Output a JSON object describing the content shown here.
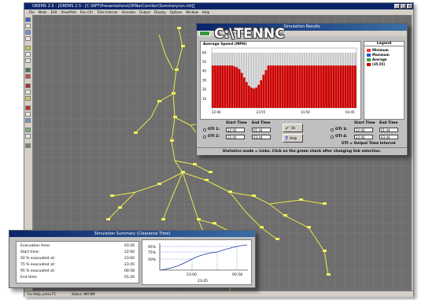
{
  "main_window": {
    "title": "OREMS 2.5 - [OREMS 2.5 - [C:\\NPT\\Presentations\\ORNarCorridor\\Summaryrun.ntt]]",
    "menu": [
      "File",
      "Mode",
      "Edit",
      "View/Path",
      "Run Ctrl",
      "Time Interval",
      "Simulate",
      "Output",
      "Display",
      "Options",
      "Window",
      "Help"
    ],
    "status": [
      "For Help, press F1",
      "Status: NM   NM"
    ]
  },
  "results_window": {
    "title": "Simulation Results",
    "toolbar": [
      "Link",
      "Color Results",
      "Display",
      "Options"
    ],
    "overlay_text": "C:\\TENNC",
    "chart_data": {
      "type": "bar",
      "title": "Average Speed (MPH)",
      "ylim": [
        0,
        65
      ],
      "y_ticks": [
        "60",
        "50",
        "40",
        "30",
        "20",
        "10"
      ],
      "x_ticks": [
        "22:00",
        "23:55",
        "01:50",
        "03:45"
      ],
      "series": [
        {
          "name": "Minimum",
          "color": "#ff3333"
        },
        {
          "name": "Maximum",
          "color": "#2255cc"
        },
        {
          "name": "Average",
          "color": "#33aa33"
        },
        {
          "name": "(35,55)",
          "color": "#cc0000"
        }
      ],
      "bars_gray": [
        60,
        60,
        60,
        60,
        60,
        60,
        60,
        60,
        60,
        60,
        60,
        60,
        60,
        60,
        60,
        60,
        60,
        60,
        60,
        60,
        60,
        60,
        60,
        60,
        60,
        60,
        60,
        60,
        60,
        60,
        60,
        60,
        60,
        60,
        60,
        60,
        60,
        60,
        60,
        60,
        60,
        60,
        60,
        60,
        60,
        60,
        60,
        60,
        60,
        60,
        60,
        60,
        60,
        60,
        60,
        60,
        60,
        60,
        60,
        60
      ],
      "bars_red": [
        46,
        46,
        46,
        46,
        46,
        46,
        46,
        46,
        46,
        45,
        44,
        42,
        38,
        33,
        28,
        24,
        22,
        21,
        22,
        25,
        30,
        36,
        41,
        46,
        46,
        46,
        46,
        46,
        46,
        46,
        46,
        46,
        46,
        46,
        46,
        46,
        46,
        46,
        46,
        46,
        46,
        46,
        46,
        46,
        46,
        46,
        46,
        46,
        46,
        46,
        46,
        46,
        46,
        46,
        46,
        46,
        46,
        46,
        46,
        46
      ],
      "bars_red_visible_from": 0
    },
    "legend_title": "Legend",
    "legend": [
      "Minimum",
      "Maximum",
      "Average",
      "(35,55)"
    ],
    "controls": {
      "start_time_label": "Start Time",
      "end_time_label": "End Time",
      "oti1": "OTI 1:",
      "oti2": "OTI 2:",
      "oti3": "OTI 3:",
      "oti4": "OTI 4:",
      "oti1_start": "22:00",
      "oti1_end": "01:44",
      "oti2_start": "22:00",
      "oti2_end": "03:44",
      "oti3_start": "22:00",
      "oti3_end": "01:44",
      "oti4_start": "22:00",
      "oti4_end": "03:44",
      "ok_label": "Ok",
      "help_label": "Help",
      "oti_note": "OTI = Output Time Interval"
    },
    "status_text": "Statistics mode = Links. Click on the green check after changing link selection."
  },
  "summary_window": {
    "title": "Simulation Summary (Clearance Time)",
    "rows": [
      {
        "label": "Evacuation time:",
        "value": "03:26"
      },
      {
        "label": "Start time:",
        "value": "22:00"
      },
      {
        "label": "50 % evacuated at:",
        "value": "23:00"
      },
      {
        "label": "75 % evacuated at:",
        "value": "23:45"
      },
      {
        "label": "95 % evacuated at:",
        "value": "00:58"
      },
      {
        "label": "End time:",
        "value": "01:26"
      }
    ],
    "chart_data": {
      "type": "line",
      "y_labels": [
        "95%",
        "75%",
        "50%"
      ],
      "x_labels": [
        "23:00",
        "23:45",
        "00:58"
      ]
    }
  }
}
